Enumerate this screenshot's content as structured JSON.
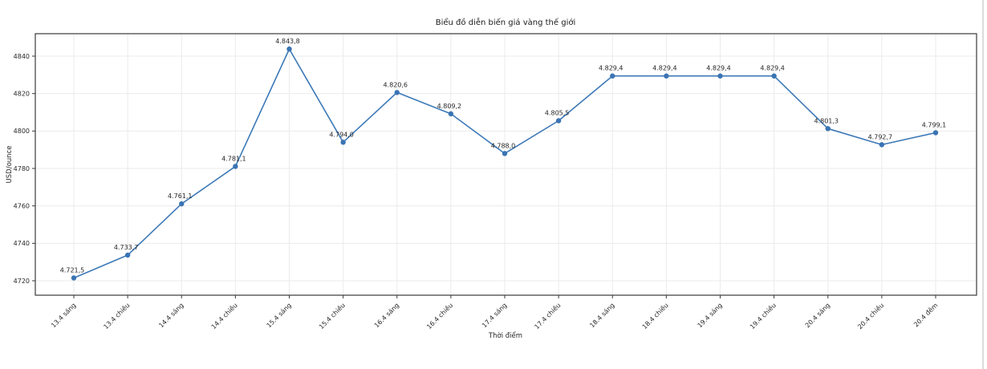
{
  "chart_data": {
    "type": "line",
    "title": "Biểu đồ diễn biến giá vàng thế giới",
    "xlabel": "Thời điểm",
    "ylabel": "USD/ounce",
    "categories": [
      "13.4 sáng",
      "13.4 chiều",
      "14.4 sáng",
      "14.4 chiều",
      "15.4 sáng",
      "15.4 chiều",
      "16.4 sáng",
      "16.4 chiều",
      "17.4 sáng",
      "17.4 chiều",
      "18.4 sáng",
      "18.4 chiều",
      "19.4 sáng",
      "19.4 chiều",
      "20.4 sáng",
      "20.4 chiều",
      "20.4 đêm"
    ],
    "values": [
      4721.5,
      4733.7,
      4761.1,
      4781.1,
      4843.8,
      4794.0,
      4820.6,
      4809.2,
      4788.0,
      4805.5,
      4829.4,
      4829.4,
      4829.4,
      4829.4,
      4801.3,
      4792.7,
      4799.1
    ],
    "point_labels": [
      "4.721,5",
      "4.733,7",
      "4.761,1",
      "4.781,1",
      "4.843,8",
      "4.794,0",
      "4.820,6",
      "4.809,2",
      "4.788,0",
      "4.805,5",
      "4.829,4",
      "4.829,4",
      "4.829,4",
      "4.829,4",
      "4.801,3",
      "4.792,7",
      "4.799,1"
    ],
    "yticks": [
      4720,
      4740,
      4760,
      4780,
      4800,
      4820,
      4840
    ],
    "ylim": [
      4712,
      4852
    ],
    "grid": true,
    "legend": "none",
    "colors": {
      "line": "#3d79b8",
      "marker": "#3a74b3",
      "grid": "#ebebeb",
      "axis_border": "#3a3a3a",
      "tick_text": "#262626",
      "label_text": "#262626",
      "title_text": "#1a1a1a"
    }
  }
}
